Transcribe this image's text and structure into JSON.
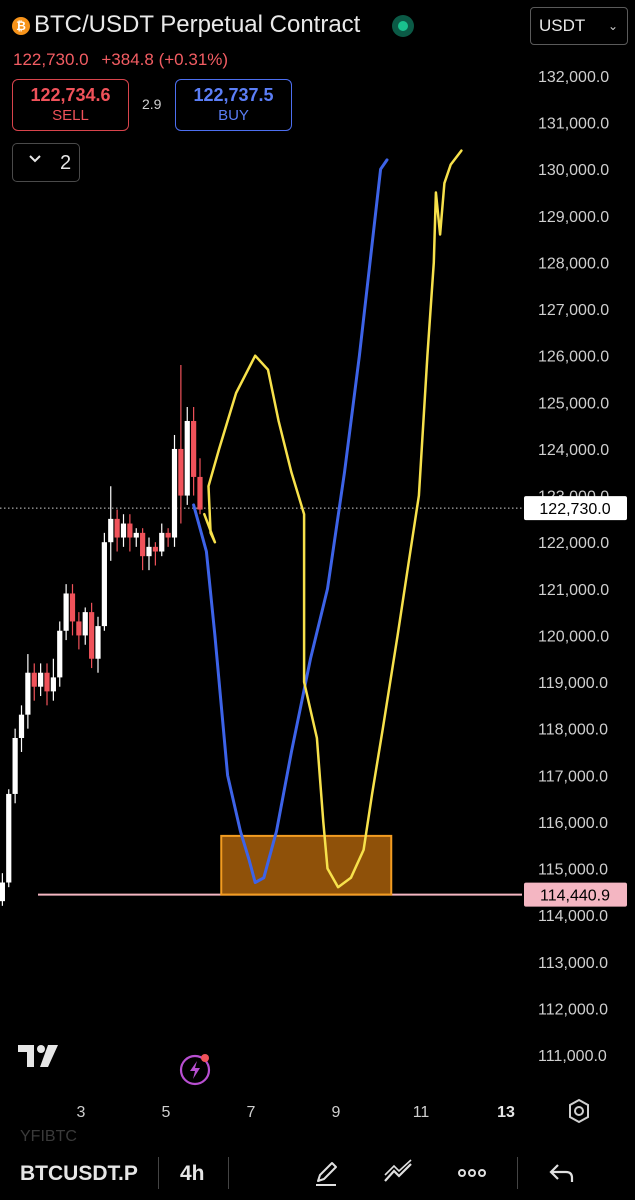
{
  "header": {
    "coin_icon": "bitcoin-icon",
    "title": "BTC/USDT Perpetual Contract",
    "status_icon": "connection-status-icon",
    "currency": "USDT",
    "last_price": "122,730.0",
    "change": "+384.8",
    "change_pct": "(+0.31%)",
    "sell_price": "122,734.6",
    "sell_label": "SELL",
    "spread": "2.9",
    "buy_price": "122,737.5",
    "buy_label": "BUY",
    "collapse_count": "2"
  },
  "chart_data": {
    "type": "candlestick",
    "y_ticks": [
      "132,000.0",
      "131,000.0",
      "130,000.0",
      "129,000.0",
      "128,000.0",
      "127,000.0",
      "126,000.0",
      "125,000.0",
      "124,000.0",
      "123,000.0",
      "122,000.0",
      "121,000.0",
      "120,000.0",
      "119,000.0",
      "118,000.0",
      "117,000.0",
      "116,000.0",
      "115,000.0",
      "114,000.0",
      "113,000.0",
      "112,000.0",
      "111,000.0"
    ],
    "x_ticks": [
      "3",
      "5",
      "7",
      "9",
      "11",
      "13"
    ],
    "current_price_label": "122,730.0",
    "current_price": 122730,
    "level_label": "114,440.9",
    "level_price": 114440.9,
    "colors": {
      "up": "#ffffff",
      "down": "#f0525a",
      "level_line": "#f4b6c2",
      "zone": "#a85f0a",
      "zone_border": "#f39c21",
      "blue_path": "#3d63e8",
      "yellow_path": "#f7e14b"
    },
    "zone": {
      "x_from": 6.3,
      "x_to": 10.3,
      "y_from": 114440.9,
      "y_to": 115700
    },
    "candles": [
      [
        1.0,
        114050,
        114300,
        113850,
        114450
      ],
      [
        1.15,
        114300,
        114700,
        114200,
        114900
      ],
      [
        1.3,
        114700,
        116600,
        114600,
        116700
      ],
      [
        1.45,
        116600,
        117800,
        116400,
        118000
      ],
      [
        1.6,
        117800,
        118300,
        117500,
        118500
      ],
      [
        1.75,
        118300,
        119200,
        118000,
        119600
      ],
      [
        1.9,
        119200,
        118900,
        118600,
        119400
      ],
      [
        2.05,
        118900,
        119200,
        118700,
        119400
      ],
      [
        2.2,
        119200,
        118800,
        118500,
        119400
      ],
      [
        2.35,
        118800,
        119100,
        118600,
        119500
      ],
      [
        2.5,
        119100,
        120100,
        118900,
        120300
      ],
      [
        2.65,
        120100,
        120900,
        119900,
        121100
      ],
      [
        2.8,
        120900,
        120300,
        120000,
        121100
      ],
      [
        2.95,
        120300,
        120000,
        119700,
        120500
      ],
      [
        3.1,
        120000,
        120500,
        119800,
        120600
      ],
      [
        3.25,
        120500,
        119500,
        119300,
        120700
      ],
      [
        3.4,
        119500,
        120200,
        119200,
        120400
      ],
      [
        3.55,
        120200,
        122000,
        120100,
        122200
      ],
      [
        3.7,
        122000,
        122500,
        121600,
        123200
      ],
      [
        3.85,
        122500,
        122100,
        121800,
        122700
      ],
      [
        4.0,
        122100,
        122400,
        121900,
        122600
      ],
      [
        4.15,
        122400,
        122100,
        121800,
        122600
      ],
      [
        4.3,
        122100,
        122200,
        121900,
        122300
      ],
      [
        4.45,
        122200,
        121700,
        121400,
        122300
      ],
      [
        4.6,
        121700,
        121900,
        121400,
        122100
      ],
      [
        4.75,
        121900,
        121800,
        121500,
        122000
      ],
      [
        4.9,
        121800,
        122200,
        121700,
        122400
      ],
      [
        5.05,
        122200,
        122100,
        121900,
        122300
      ],
      [
        5.2,
        122100,
        124000,
        121900,
        124300
      ],
      [
        5.35,
        124000,
        123000,
        122400,
        125800
      ],
      [
        5.5,
        123000,
        124600,
        122800,
        124900
      ],
      [
        5.65,
        124600,
        123400,
        123000,
        124900
      ],
      [
        5.8,
        123400,
        122700,
        122600,
        123800
      ]
    ],
    "blue_path": [
      [
        5.65,
        122800
      ],
      [
        5.95,
        121800
      ],
      [
        6.15,
        120000
      ],
      [
        6.45,
        117000
      ],
      [
        6.75,
        115800
      ],
      [
        6.95,
        115200
      ],
      [
        7.1,
        114700
      ],
      [
        7.3,
        114800
      ],
      [
        7.6,
        115800
      ],
      [
        7.95,
        117500
      ],
      [
        8.4,
        119500
      ],
      [
        8.8,
        121000
      ],
      [
        9.2,
        123500
      ],
      [
        9.55,
        126000
      ],
      [
        9.8,
        128000
      ],
      [
        10.05,
        130000
      ],
      [
        10.2,
        130200
      ]
    ],
    "yellow_path": [
      [
        5.9,
        122600
      ],
      [
        6.15,
        122000
      ],
      [
        6.05,
        122200
      ],
      [
        6.0,
        123200
      ],
      [
        6.25,
        124000
      ],
      [
        6.65,
        125200
      ],
      [
        7.1,
        126000
      ],
      [
        7.4,
        125700
      ],
      [
        7.65,
        124600
      ],
      [
        7.95,
        123500
      ],
      [
        8.25,
        122600
      ],
      [
        8.25,
        119000
      ],
      [
        8.55,
        117800
      ],
      [
        8.7,
        116000
      ],
      [
        8.8,
        115000
      ],
      [
        9.05,
        114600
      ],
      [
        9.35,
        114800
      ],
      [
        9.65,
        115400
      ],
      [
        9.85,
        116600
      ],
      [
        10.1,
        118000
      ],
      [
        10.45,
        120000
      ],
      [
        10.7,
        121500
      ],
      [
        10.95,
        123000
      ],
      [
        11.15,
        126000
      ],
      [
        11.3,
        128000
      ],
      [
        11.35,
        129500
      ],
      [
        11.45,
        128600
      ],
      [
        11.55,
        129700
      ],
      [
        11.7,
        130100
      ],
      [
        11.95,
        130400
      ]
    ]
  },
  "side_icons": {
    "tradingview": "tradingview-logo-icon",
    "flash": "flash-icon",
    "settings": "settings-gear-icon"
  },
  "bottom_bar": {
    "ghost_text": "YFIBTC",
    "symbol": "BTCUSDT.P",
    "timeframe": "4h",
    "icons": [
      "draw-pen-icon",
      "indicators-icon",
      "more-icon",
      "undo-icon"
    ]
  }
}
